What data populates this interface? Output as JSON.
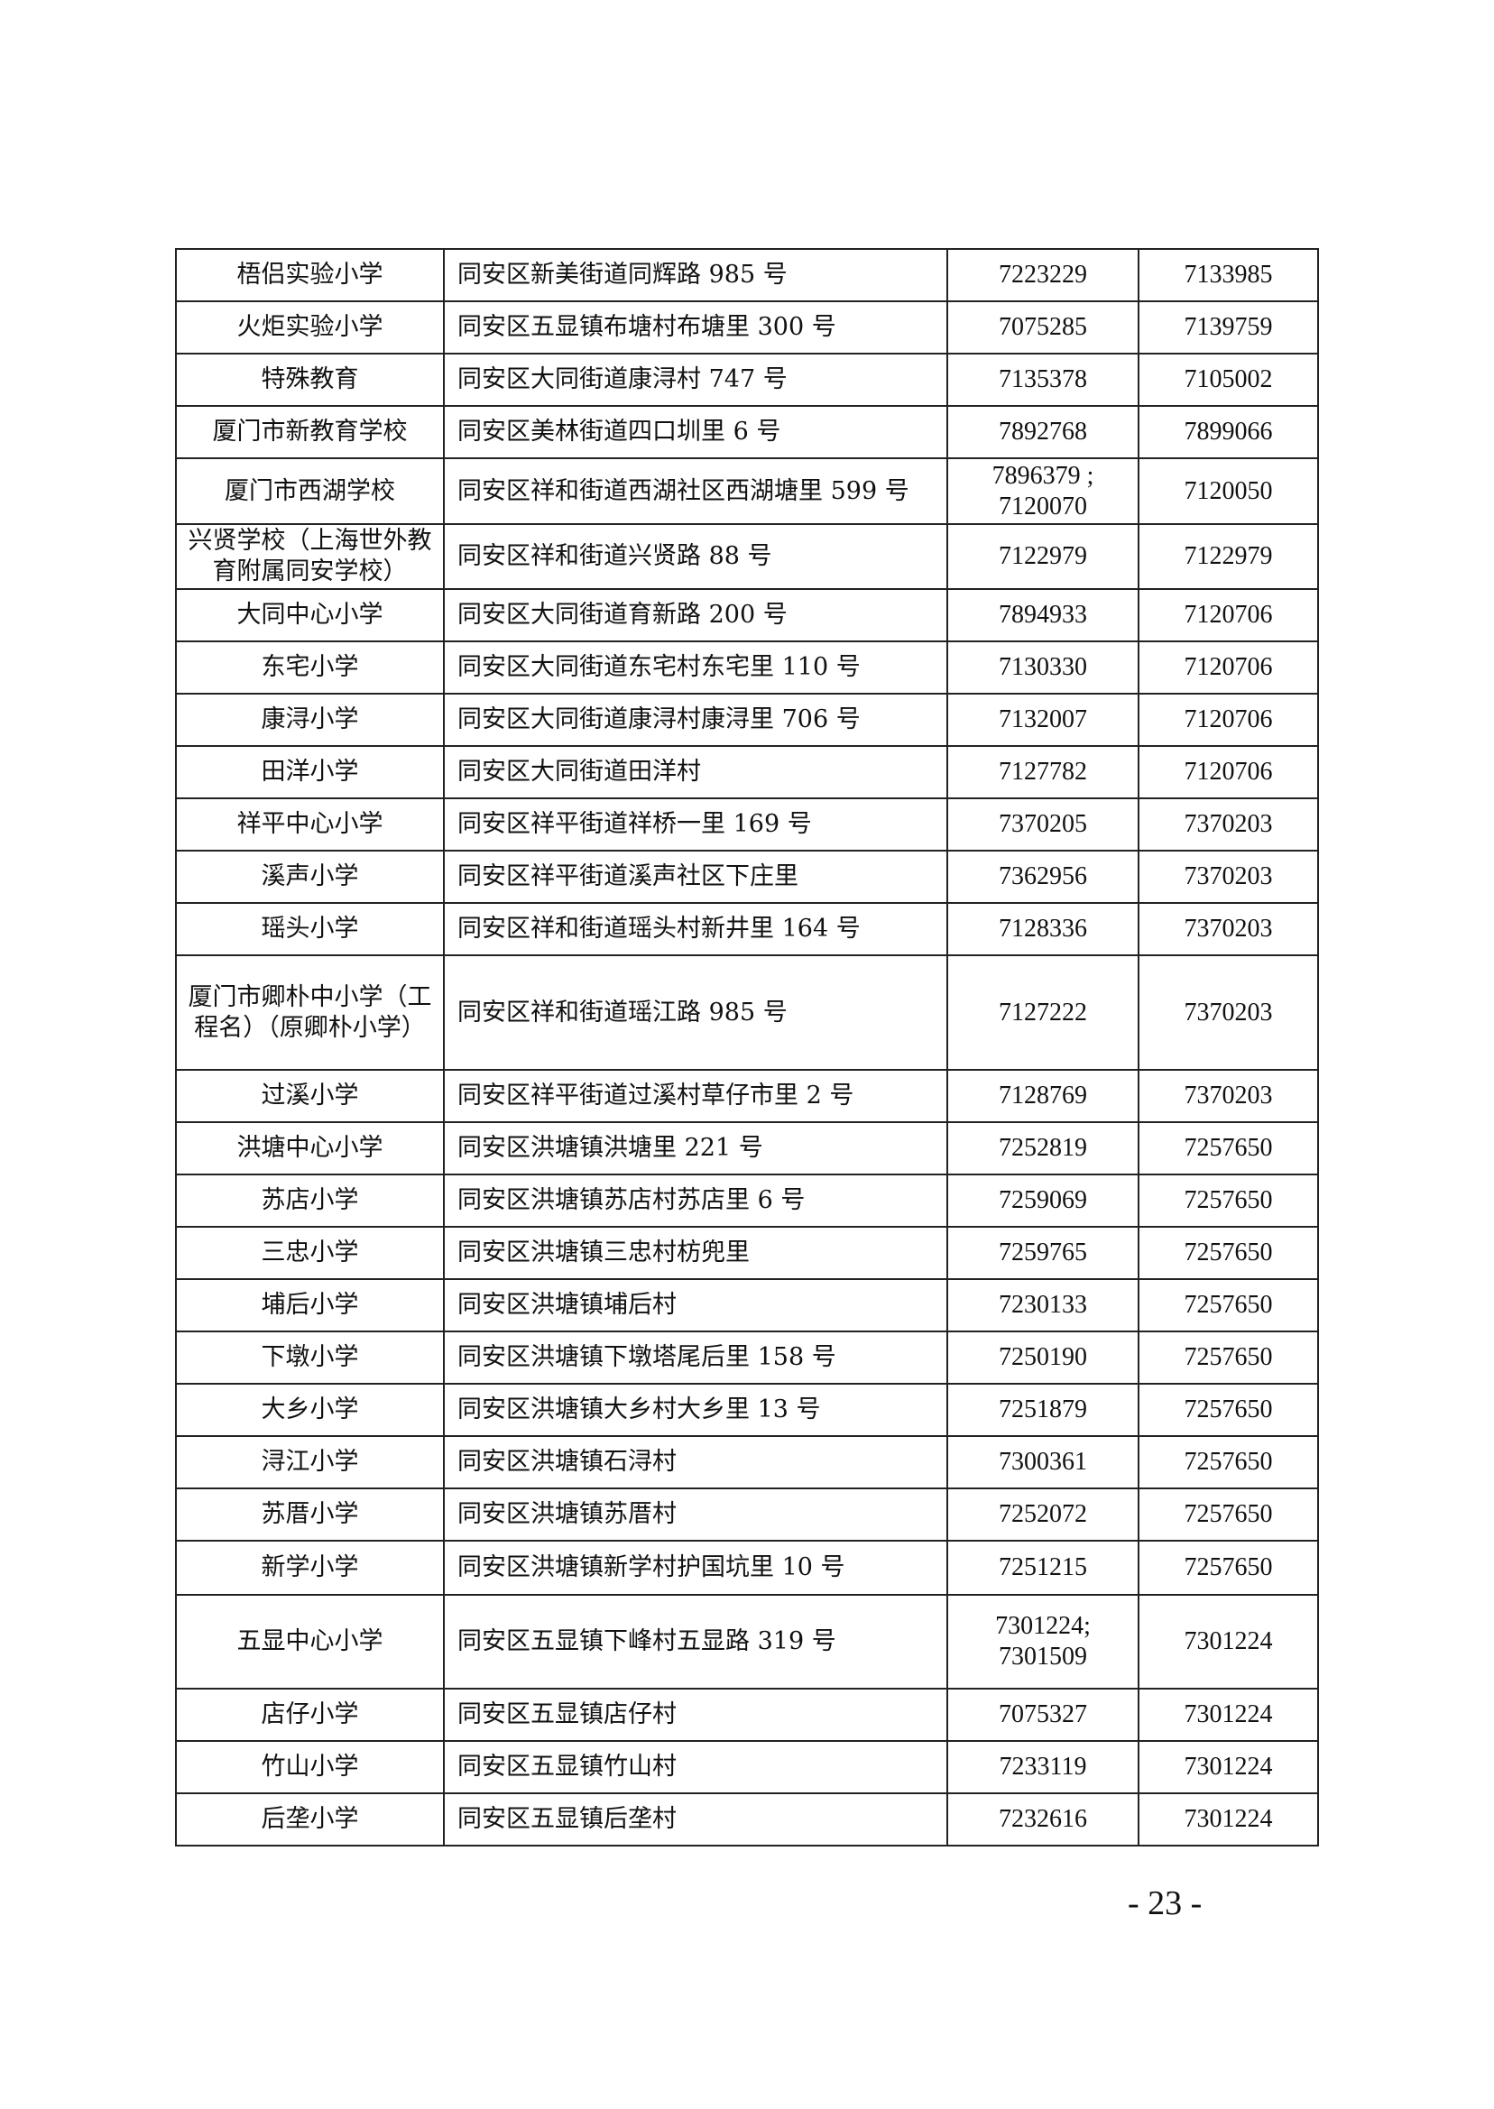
{
  "rows": [
    {
      "name": "梧侣实验小学",
      "address": "同安区新美街道同辉路 985 号",
      "phone": "7223229",
      "fax": "7133985"
    },
    {
      "name": "火炬实验小学",
      "address": "同安区五显镇布塘村布塘里 300 号",
      "phone": "7075285",
      "fax": "7139759"
    },
    {
      "name": "特殊教育",
      "address": "同安区大同街道康浔村 747 号",
      "phone": "7135378",
      "fax": "7105002"
    },
    {
      "name": "厦门市新教育学校",
      "address": "同安区美林街道四口圳里 6 号",
      "phone": "7892768",
      "fax": "7899066"
    },
    {
      "name": "厦门市西湖学校",
      "address": "同安区祥和街道西湖社区西湖塘里 599 号",
      "phone": "7896379 ; 7120070",
      "fax": "7120050"
    },
    {
      "name": "兴贤学校（上海世外教育附属同安学校）",
      "address": "同安区祥和街道兴贤路 88 号",
      "phone": "7122979",
      "fax": "7122979"
    },
    {
      "name": "大同中心小学",
      "address": "同安区大同街道育新路 200 号",
      "phone": "7894933",
      "fax": "7120706"
    },
    {
      "name": "东宅小学",
      "address": "同安区大同街道东宅村东宅里 110 号",
      "phone": "7130330",
      "fax": "7120706"
    },
    {
      "name": "康浔小学",
      "address": "同安区大同街道康浔村康浔里 706 号",
      "phone": "7132007",
      "fax": "7120706"
    },
    {
      "name": "田洋小学",
      "address": "同安区大同街道田洋村",
      "phone": "7127782",
      "fax": "7120706"
    },
    {
      "name": "祥平中心小学",
      "address": "同安区祥平街道祥桥一里 169 号",
      "phone": "7370205",
      "fax": "7370203"
    },
    {
      "name": "溪声小学",
      "address": "同安区祥平街道溪声社区下庄里",
      "phone": "7362956",
      "fax": "7370203"
    },
    {
      "name": "瑶头小学",
      "address": "同安区祥和街道瑶头村新井里 164 号",
      "phone": "7128336",
      "fax": "7370203"
    },
    {
      "name": "厦门市卿朴中小学（工程名）（原卿朴小学）",
      "address": "同安区祥和街道瑶江路 985 号",
      "phone": "7127222",
      "fax": "7370203"
    },
    {
      "name": "过溪小学",
      "address": "同安区祥平街道过溪村草仔市里 2 号",
      "phone": "7128769",
      "fax": "7370203"
    },
    {
      "name": "洪塘中心小学",
      "address": "同安区洪塘镇洪塘里 221 号",
      "phone": "7252819",
      "fax": "7257650"
    },
    {
      "name": "苏店小学",
      "address": "同安区洪塘镇苏店村苏店里 6 号",
      "phone": "7259069",
      "fax": "7257650"
    },
    {
      "name": "三忠小学",
      "address": "同安区洪塘镇三忠村枋兜里",
      "phone": "7259765",
      "fax": "7257650"
    },
    {
      "name": "埔后小学",
      "address": "同安区洪塘镇埔后村",
      "phone": "7230133",
      "fax": "7257650"
    },
    {
      "name": "下墩小学",
      "address": "同安区洪塘镇下墩塔尾后里 158 号",
      "phone": "7250190",
      "fax": "7257650"
    },
    {
      "name": "大乡小学",
      "address": "同安区洪塘镇大乡村大乡里 13 号",
      "phone": "7251879",
      "fax": "7257650"
    },
    {
      "name": "浔江小学",
      "address": "同安区洪塘镇石浔村",
      "phone": "7300361",
      "fax": "7257650"
    },
    {
      "name": "苏厝小学",
      "address": "同安区洪塘镇苏厝村",
      "phone": "7252072",
      "fax": "7257650"
    },
    {
      "name": "新学小学",
      "address": "同安区洪塘镇新学村护国坑里 10 号",
      "phone": "7251215",
      "fax": "7257650"
    },
    {
      "name": "五显中心小学",
      "address": "同安区五显镇下峰村五显路 319 号",
      "phone": "7301224; 7301509",
      "fax": "7301224"
    },
    {
      "name": "店仔小学",
      "address": "同安区五显镇店仔村",
      "phone": "7075327",
      "fax": "7301224"
    },
    {
      "name": "竹山小学",
      "address": "同安区五显镇竹山村",
      "phone": "7233119",
      "fax": "7301224"
    },
    {
      "name": "后垄小学",
      "address": "同安区五显镇后垄村",
      "phone": "7232616",
      "fax": "7301224"
    }
  ],
  "page_number": "- 23 -"
}
